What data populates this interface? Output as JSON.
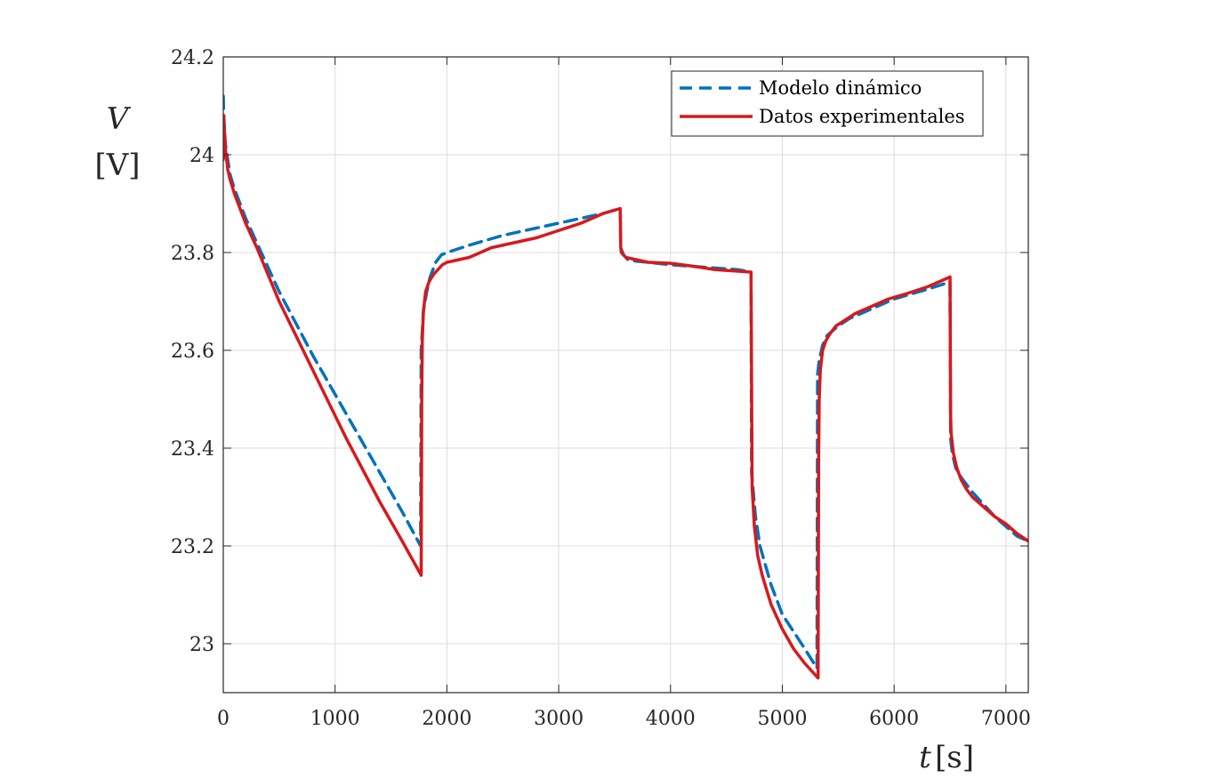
{
  "chart_data": {
    "type": "line",
    "xlabel_var": "t",
    "xlabel_unit": "[s]",
    "ylabel_var": "V",
    "ylabel_unit": "[V]",
    "xlim": [
      0,
      7200
    ],
    "ylim": [
      22.9,
      24.2
    ],
    "xticks": [
      0,
      1000,
      2000,
      3000,
      4000,
      5000,
      6000,
      7000
    ],
    "yticks": [
      23,
      23.2,
      23.4,
      23.6,
      23.8,
      24,
      24.2
    ],
    "xtick_labels": [
      "0",
      "1000",
      "2000",
      "3000",
      "4000",
      "5000",
      "6000",
      "7000"
    ],
    "ytick_labels": [
      "23",
      "23.2",
      "23.4",
      "23.6",
      "23.8",
      "24",
      "24.2"
    ],
    "grid": true,
    "legend_position": "top-right",
    "series": [
      {
        "name": "Modelo dinámico",
        "style": "dashed",
        "color": "#0072BD",
        "x": [
          0,
          5,
          20,
          60,
          100,
          200,
          300,
          500,
          800,
          1100,
          1400,
          1600,
          1765,
          1770,
          1790,
          1820,
          1850,
          1900,
          1950,
          2000,
          2200,
          2500,
          2800,
          3100,
          3400,
          3550,
          3555,
          3580,
          3620,
          3700,
          3800,
          4000,
          4300,
          4600,
          4720,
          4725,
          4760,
          4800,
          4900,
          5000,
          5200,
          5310,
          5315,
          5330,
          5360,
          5400,
          5500,
          5600,
          5800,
          6000,
          6300,
          6500,
          6505,
          6520,
          6550,
          6600,
          6700,
          6800,
          6900,
          7000,
          7100,
          7200
        ],
        "y": [
          24.12,
          24.07,
          24.02,
          23.96,
          23.93,
          23.87,
          23.82,
          23.72,
          23.59,
          23.47,
          23.35,
          23.27,
          23.2,
          23.6,
          23.68,
          23.72,
          23.75,
          23.78,
          23.795,
          23.8,
          23.815,
          23.835,
          23.85,
          23.865,
          23.88,
          23.89,
          23.81,
          23.795,
          23.785,
          23.782,
          23.78,
          23.775,
          23.77,
          23.765,
          23.76,
          23.35,
          23.26,
          23.2,
          23.12,
          23.06,
          22.99,
          22.95,
          23.55,
          23.58,
          23.61,
          23.63,
          23.65,
          23.665,
          23.685,
          23.705,
          23.725,
          23.74,
          23.42,
          23.39,
          23.36,
          23.34,
          23.31,
          23.285,
          23.26,
          23.24,
          23.22,
          23.21
        ]
      },
      {
        "name": "Datos experimentales",
        "style": "solid",
        "color": "#D7191C",
        "x": [
          0,
          5,
          10,
          20,
          40,
          60,
          100,
          150,
          200,
          300,
          500,
          800,
          1100,
          1400,
          1600,
          1770,
          1775,
          1780,
          1790,
          1810,
          1840,
          1880,
          1920,
          1960,
          2000,
          2100,
          2200,
          2300,
          2400,
          2600,
          2800,
          3000,
          3200,
          3400,
          3550,
          3555,
          3560,
          3580,
          3600,
          3700,
          3800,
          4000,
          4200,
          4400,
          4720,
          4730,
          4750,
          4780,
          4820,
          4900,
          5000,
          5100,
          5200,
          5320,
          5325,
          5330,
          5340,
          5360,
          5390,
          5430,
          5480,
          5550,
          5650,
          5750,
          5850,
          5950,
          6100,
          6300,
          6500,
          6505,
          6510,
          6530,
          6560,
          6600,
          6650,
          6700,
          6800,
          6900,
          7000,
          7100,
          7200
        ],
        "y": [
          23.99,
          24.08,
          24.05,
          24.01,
          23.97,
          23.95,
          23.92,
          23.89,
          23.86,
          23.81,
          23.7,
          23.56,
          23.42,
          23.29,
          23.21,
          23.14,
          23.5,
          23.62,
          23.68,
          23.72,
          23.74,
          23.755,
          23.765,
          23.775,
          23.78,
          23.785,
          23.79,
          23.8,
          23.81,
          23.82,
          23.83,
          23.845,
          23.86,
          23.88,
          23.89,
          23.81,
          23.8,
          23.795,
          23.79,
          23.785,
          23.78,
          23.778,
          23.772,
          23.765,
          23.76,
          23.32,
          23.24,
          23.18,
          23.14,
          23.08,
          23.03,
          22.99,
          22.96,
          22.93,
          23.38,
          23.5,
          23.56,
          23.6,
          23.62,
          23.635,
          23.65,
          23.66,
          23.675,
          23.685,
          23.695,
          23.705,
          23.715,
          23.73,
          23.75,
          23.47,
          23.43,
          23.39,
          23.36,
          23.335,
          23.315,
          23.3,
          23.28,
          23.26,
          23.245,
          23.225,
          23.21
        ]
      }
    ]
  }
}
